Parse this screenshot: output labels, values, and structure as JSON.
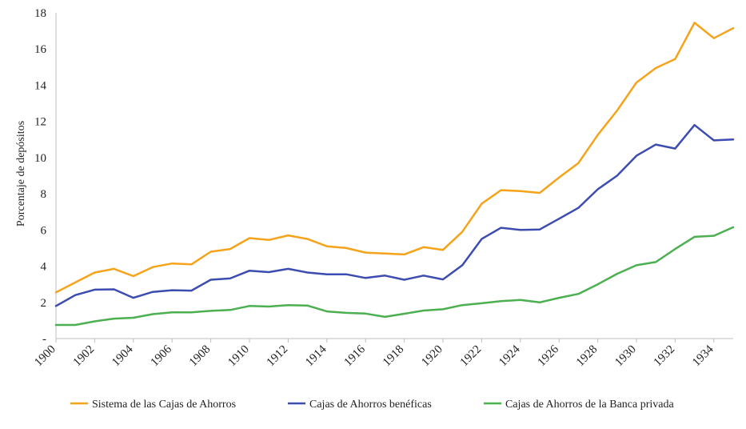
{
  "chart_data": {
    "type": "line",
    "title": "",
    "xlabel": "",
    "ylabel": "Porcentaje de depósitos",
    "x": [
      1900,
      1901,
      1902,
      1903,
      1904,
      1905,
      1906,
      1907,
      1908,
      1909,
      1910,
      1911,
      1912,
      1913,
      1914,
      1915,
      1916,
      1917,
      1918,
      1919,
      1920,
      1921,
      1922,
      1923,
      1924,
      1925,
      1926,
      1927,
      1928,
      1929,
      1930,
      1931,
      1932,
      1933,
      1934,
      1935
    ],
    "xticks": [
      "1900",
      "1902",
      "1904",
      "1906",
      "1908",
      "1910",
      "1912",
      "1914",
      "1916",
      "1918",
      "1920",
      "1922",
      "1924",
      "1926",
      "1928",
      "1930",
      "1932",
      "1934"
    ],
    "yticks": [
      "-",
      "2",
      "4",
      "6",
      "8",
      "10",
      "12",
      "14",
      "16",
      "18"
    ],
    "ylim": [
      0,
      18
    ],
    "legend_position": "bottom",
    "series": [
      {
        "name": "Sistema de las Cajas de Ahorros",
        "color": "#f5a31a",
        "values": [
          2.55,
          3.1,
          3.65,
          3.85,
          3.45,
          3.95,
          4.15,
          4.1,
          4.8,
          4.95,
          5.55,
          5.45,
          5.7,
          5.5,
          5.1,
          5.0,
          4.75,
          4.7,
          4.65,
          5.05,
          4.9,
          5.9,
          7.45,
          8.2,
          8.15,
          8.05,
          8.9,
          9.7,
          11.25,
          12.6,
          14.15,
          14.95,
          15.45,
          17.45,
          16.6,
          17.15
        ]
      },
      {
        "name": "Cajas de Ahorros benéficas",
        "color": "#3d4cb0",
        "values": [
          1.8,
          2.4,
          2.7,
          2.72,
          2.25,
          2.58,
          2.67,
          2.65,
          3.25,
          3.32,
          3.75,
          3.67,
          3.85,
          3.65,
          3.55,
          3.55,
          3.35,
          3.48,
          3.25,
          3.48,
          3.27,
          4.05,
          5.5,
          6.12,
          6.0,
          6.03,
          6.62,
          7.22,
          8.25,
          9.0,
          10.1,
          10.72,
          10.5,
          11.8,
          10.95,
          11.0
        ]
      },
      {
        "name": "Cajas de Ahorros de la Banca privada",
        "color": "#4caf50",
        "values": [
          0.75,
          0.75,
          0.95,
          1.1,
          1.15,
          1.35,
          1.45,
          1.45,
          1.53,
          1.58,
          1.8,
          1.77,
          1.85,
          1.82,
          1.5,
          1.42,
          1.38,
          1.2,
          1.37,
          1.55,
          1.62,
          1.85,
          1.95,
          2.07,
          2.13,
          2.0,
          2.25,
          2.47,
          3.0,
          3.58,
          4.05,
          4.23,
          4.95,
          5.62,
          5.68,
          6.15
        ]
      }
    ]
  }
}
